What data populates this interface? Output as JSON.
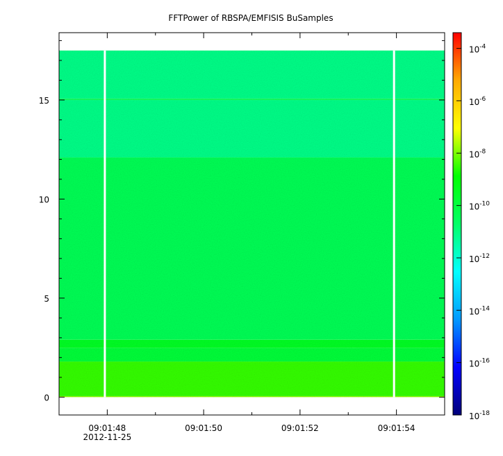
{
  "chart_data": {
    "type": "heatmap",
    "title": "FFTPower of RBSPA/EMFISIS  BuSamples",
    "xlabel": "",
    "ylabel": "",
    "x_ticks": [
      {
        "label": "09:01:48",
        "sub": "2012-11-25",
        "t": 48
      },
      {
        "label": "09:01:50",
        "t": 50
      },
      {
        "label": "09:01:52",
        "t": 52
      },
      {
        "label": "09:01:54",
        "t": 54
      }
    ],
    "x_minor_ticks": [
      49,
      51,
      53,
      55
    ],
    "xlim_seconds_after_09_01_00": [
      47.0,
      55.0
    ],
    "y_ticks": [
      0,
      5,
      10,
      15
    ],
    "ylim": [
      -0.9,
      18.4
    ],
    "data_y_range": [
      0,
      17.5
    ],
    "data_gaps_seconds_after_09_01_00": [
      47.95,
      53.95
    ],
    "bands": [
      {
        "y_from": 0,
        "y_to": 0.05,
        "log_power": -7.8
      },
      {
        "y_from": 0.05,
        "y_to": 1.8,
        "log_power": -8.5
      },
      {
        "y_from": 1.8,
        "y_to": 2.5,
        "log_power": -9.9
      },
      {
        "y_from": 2.5,
        "y_to": 2.9,
        "log_power": -9.5
      },
      {
        "y_from": 2.9,
        "y_to": 12.1,
        "log_power": -10.4
      },
      {
        "y_from": 12.1,
        "y_to": 15.0,
        "log_power": -11.1
      },
      {
        "y_from": 15.0,
        "y_to": 15.07,
        "log_power": -10.4
      },
      {
        "y_from": 15.07,
        "y_to": 17.5,
        "log_power": -11.1
      }
    ],
    "colorbar": {
      "scale": "log",
      "range": [
        -18,
        -3.4
      ],
      "ticks": [
        {
          "base": "10",
          "exp": "-4",
          "value": -4
        },
        {
          "base": "10",
          "exp": "-6",
          "value": -6
        },
        {
          "base": "10",
          "exp": "-8",
          "value": -8
        },
        {
          "base": "10",
          "exp": "-10",
          "value": -10
        },
        {
          "base": "10",
          "exp": "-12",
          "value": -12
        },
        {
          "base": "10",
          "exp": "-14",
          "value": -14
        },
        {
          "base": "10",
          "exp": "-16",
          "value": -16
        },
        {
          "base": "10",
          "exp": "-18",
          "value": -18
        }
      ],
      "colors": [
        "#00007a",
        "#0000ff",
        "#0099ff",
        "#00ffff",
        "#00ff66",
        "#00ff00",
        "#ffff00",
        "#ffaa00",
        "#ff0000"
      ]
    }
  }
}
